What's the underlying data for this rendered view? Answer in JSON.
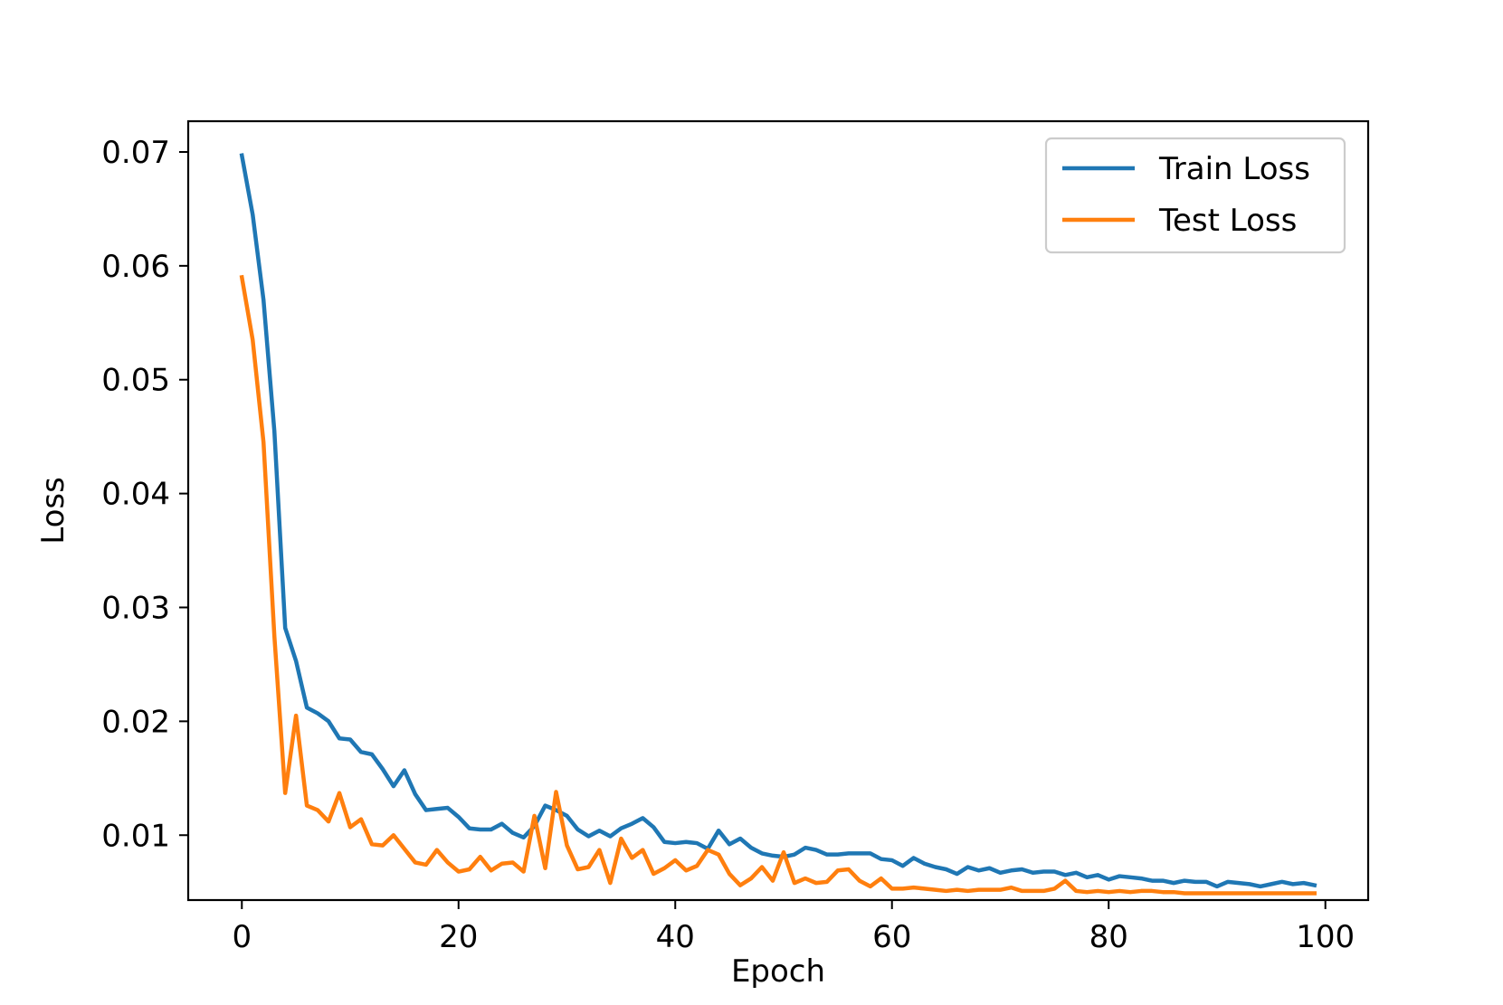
{
  "chart_data": {
    "type": "line",
    "title": "",
    "xlabel": "Epoch",
    "ylabel": "Loss",
    "xlim": [
      -4.95,
      103.95
    ],
    "ylim": [
      0.0043,
      0.0727
    ],
    "grid": false,
    "legend_position": "top-right",
    "x_ticks": [
      0,
      20,
      40,
      60,
      80,
      100
    ],
    "x_tick_labels": [
      "0",
      "20",
      "40",
      "60",
      "80",
      "100"
    ],
    "y_ticks": [
      0.01,
      0.02,
      0.03,
      0.04,
      0.05,
      0.06,
      0.07
    ],
    "y_tick_labels": [
      "0.01",
      "0.02",
      "0.03",
      "0.04",
      "0.05",
      "0.06",
      "0.07"
    ],
    "x": [
      0,
      1,
      2,
      3,
      4,
      5,
      6,
      7,
      8,
      9,
      10,
      11,
      12,
      13,
      14,
      15,
      16,
      17,
      18,
      19,
      20,
      21,
      22,
      23,
      24,
      25,
      26,
      27,
      28,
      29,
      30,
      31,
      32,
      33,
      34,
      35,
      36,
      37,
      38,
      39,
      40,
      41,
      42,
      43,
      44,
      45,
      46,
      47,
      48,
      49,
      50,
      51,
      52,
      53,
      54,
      55,
      56,
      57,
      58,
      59,
      60,
      61,
      62,
      63,
      64,
      65,
      66,
      67,
      68,
      69,
      70,
      71,
      72,
      73,
      74,
      75,
      76,
      77,
      78,
      79,
      80,
      81,
      82,
      83,
      84,
      85,
      86,
      87,
      88,
      89,
      90,
      91,
      92,
      93,
      94,
      95,
      96,
      97,
      98,
      99
    ],
    "series": [
      {
        "name": "Train Loss",
        "color": "#1f77b4",
        "values": [
          0.0697,
          0.0645,
          0.057,
          0.0455,
          0.0282,
          0.0253,
          0.0212,
          0.0207,
          0.02,
          0.0185,
          0.0184,
          0.0173,
          0.0171,
          0.0158,
          0.0143,
          0.0157,
          0.0136,
          0.0122,
          0.0123,
          0.0124,
          0.0116,
          0.0106,
          0.0105,
          0.0105,
          0.011,
          0.0102,
          0.0098,
          0.0108,
          0.0126,
          0.0122,
          0.0117,
          0.0105,
          0.0099,
          0.0104,
          0.0099,
          0.0106,
          0.011,
          0.0115,
          0.0107,
          0.0094,
          0.0093,
          0.0094,
          0.0093,
          0.0088,
          0.0104,
          0.0092,
          0.0097,
          0.0089,
          0.0084,
          0.0082,
          0.0081,
          0.0083,
          0.0089,
          0.0087,
          0.0083,
          0.0083,
          0.0084,
          0.0084,
          0.0084,
          0.0079,
          0.0078,
          0.0073,
          0.008,
          0.0075,
          0.0072,
          0.007,
          0.0066,
          0.0072,
          0.0069,
          0.0071,
          0.0067,
          0.0069,
          0.007,
          0.0067,
          0.0068,
          0.0068,
          0.0065,
          0.0067,
          0.0063,
          0.0065,
          0.0061,
          0.0064,
          0.0063,
          0.0062,
          0.006,
          0.006,
          0.0058,
          0.006,
          0.0059,
          0.0059,
          0.0055,
          0.0059,
          0.0058,
          0.0057,
          0.0055,
          0.0057,
          0.0059,
          0.0057,
          0.0058,
          0.0056
        ]
      },
      {
        "name": "Test Loss",
        "color": "#ff7f0e",
        "values": [
          0.059,
          0.0535,
          0.0445,
          0.0275,
          0.0137,
          0.0205,
          0.0126,
          0.0122,
          0.0112,
          0.0137,
          0.0107,
          0.0114,
          0.0092,
          0.0091,
          0.01,
          0.0088,
          0.0076,
          0.0074,
          0.0087,
          0.0076,
          0.0068,
          0.007,
          0.0081,
          0.0069,
          0.0075,
          0.0076,
          0.0068,
          0.0117,
          0.0071,
          0.0138,
          0.0091,
          0.007,
          0.0072,
          0.0087,
          0.0058,
          0.0097,
          0.008,
          0.0087,
          0.0066,
          0.0071,
          0.0078,
          0.0069,
          0.0073,
          0.0087,
          0.0083,
          0.0066,
          0.0056,
          0.0062,
          0.0072,
          0.006,
          0.0085,
          0.0058,
          0.0062,
          0.0058,
          0.0059,
          0.0069,
          0.007,
          0.006,
          0.0055,
          0.0062,
          0.0053,
          0.0053,
          0.0054,
          0.0053,
          0.0052,
          0.0051,
          0.0052,
          0.0051,
          0.0052,
          0.0052,
          0.0052,
          0.0054,
          0.0051,
          0.0051,
          0.0051,
          0.0053,
          0.006,
          0.0051,
          0.005,
          0.0051,
          0.005,
          0.0051,
          0.005,
          0.0051,
          0.0051,
          0.005,
          0.005,
          0.0049,
          0.0049,
          0.0049,
          0.0049,
          0.0049,
          0.0049,
          0.0049,
          0.0049,
          0.0049,
          0.0049,
          0.0049,
          0.0049,
          0.0049
        ]
      }
    ]
  }
}
